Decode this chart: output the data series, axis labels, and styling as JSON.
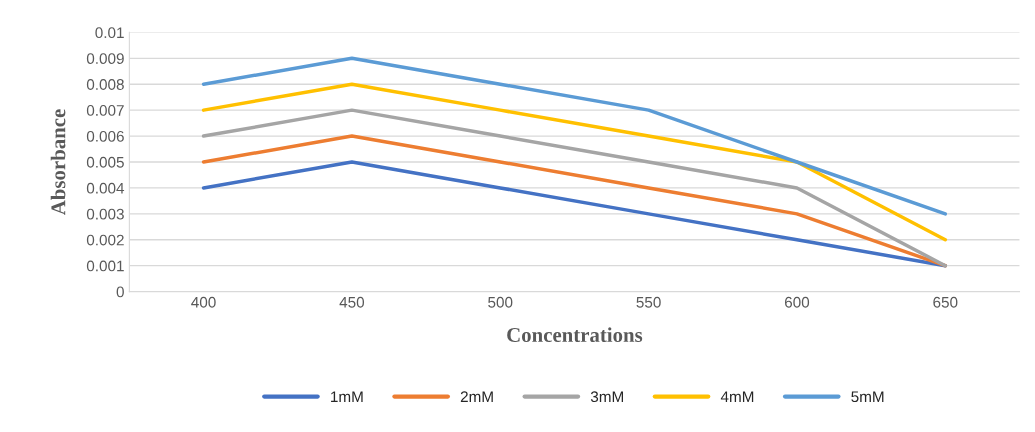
{
  "chart_data": {
    "type": "line",
    "xlabel": "Concentrations",
    "ylabel": "Absorbance",
    "categories": [
      "400",
      "450",
      "500",
      "550",
      "600",
      "650"
    ],
    "series": [
      {
        "name": "1mM",
        "color": "#4472c4",
        "values": [
          0.004,
          0.005,
          0.004,
          0.003,
          0.002,
          0.001
        ]
      },
      {
        "name": "2mM",
        "color": "#ed7d31",
        "values": [
          0.005,
          0.006,
          0.005,
          0.004,
          0.003,
          0.001
        ]
      },
      {
        "name": "3mM",
        "color": "#a5a5a5",
        "values": [
          0.006,
          0.007,
          0.006,
          0.005,
          0.004,
          0.001
        ]
      },
      {
        "name": "4mM",
        "color": "#ffc000",
        "values": [
          0.007,
          0.008,
          0.007,
          0.006,
          0.005,
          0.002
        ]
      },
      {
        "name": "5mM",
        "color": "#5b9bd5",
        "values": [
          0.008,
          0.009,
          0.008,
          0.007,
          0.005,
          0.003
        ]
      }
    ],
    "ylim": [
      0,
      0.01
    ],
    "yticks": [
      0,
      0.001,
      0.002,
      0.003,
      0.004,
      0.005,
      0.006,
      0.007,
      0.008,
      0.009,
      0.01
    ],
    "grid": "y",
    "legend": "bottom",
    "marker": "none",
    "line_style": "solid"
  }
}
